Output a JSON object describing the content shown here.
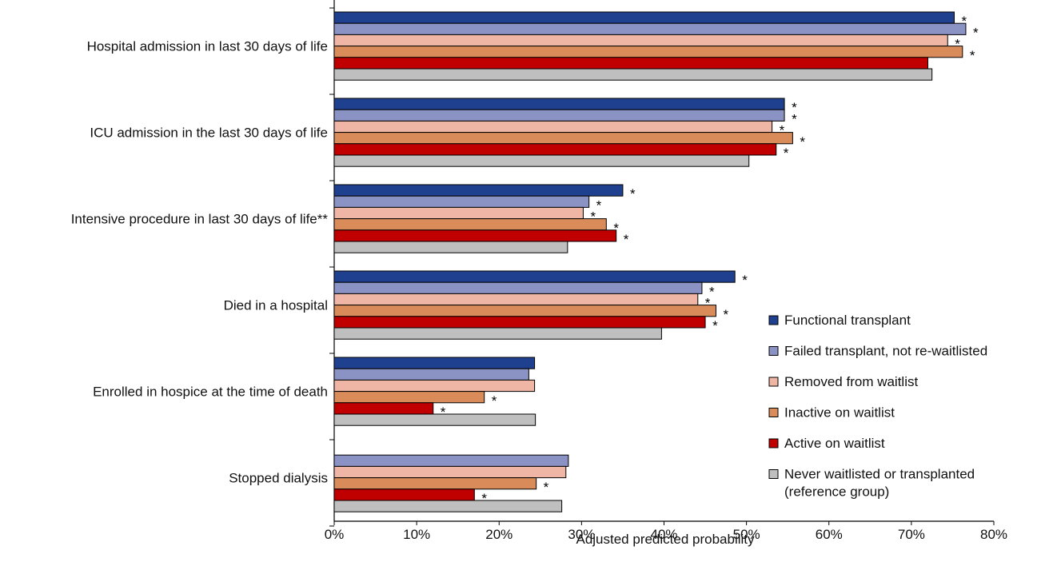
{
  "chart_data": {
    "type": "bar",
    "orientation": "horizontal",
    "title": "",
    "xlabel": "Adjusted predicted probability",
    "ylabel": "",
    "xlim": [
      0,
      80
    ],
    "x_ticks": [
      "0%",
      "10%",
      "20%",
      "30%",
      "40%",
      "50%",
      "60%",
      "70%",
      "80%"
    ],
    "legend_position": "bottom-right",
    "significance_symbol": "*",
    "categories": [
      "Hospital admission in last 30 days of life",
      "ICU admission in the last 30 days of life",
      "Intensive procedure in last 30 days of life**",
      "Died in a hospital",
      "Enrolled in hospice at the time of death",
      "Stopped dialysis"
    ],
    "series": [
      {
        "name": "Functional transplant",
        "color": "#1f3f8f",
        "values": [
          75.2,
          54.6,
          35.0,
          48.6,
          24.3,
          null
        ],
        "significant": [
          true,
          true,
          true,
          true,
          false,
          false
        ]
      },
      {
        "name": "Failed transplant, not re-waitlisted",
        "color": "#8b93c4",
        "values": [
          76.6,
          54.6,
          30.9,
          44.6,
          23.6,
          28.4
        ],
        "significant": [
          true,
          true,
          true,
          true,
          false,
          false
        ]
      },
      {
        "name": "Removed from waitlist",
        "color": "#efb6a6",
        "values": [
          74.4,
          53.1,
          30.2,
          44.1,
          24.3,
          28.1
        ],
        "significant": [
          true,
          true,
          true,
          true,
          false,
          false
        ]
      },
      {
        "name": "Inactive on waitlist",
        "color": "#d98c5a",
        "values": [
          76.2,
          55.6,
          33.0,
          46.3,
          18.2,
          24.5
        ],
        "significant": [
          true,
          true,
          true,
          true,
          true,
          true
        ]
      },
      {
        "name": "Active on waitlist",
        "color": "#c00000",
        "values": [
          72.0,
          53.6,
          34.2,
          45.0,
          12.0,
          17.0
        ],
        "significant": [
          false,
          true,
          true,
          true,
          true,
          true
        ]
      },
      {
        "name": "Never waitlisted or transplanted (reference group)",
        "legend_lines": [
          "Never waitlisted or transplanted",
          "(reference group)"
        ],
        "color": "#bfbfbf",
        "values": [
          72.5,
          50.3,
          28.3,
          39.7,
          24.4,
          27.6
        ],
        "significant": [
          false,
          false,
          false,
          false,
          false,
          false
        ]
      }
    ]
  }
}
